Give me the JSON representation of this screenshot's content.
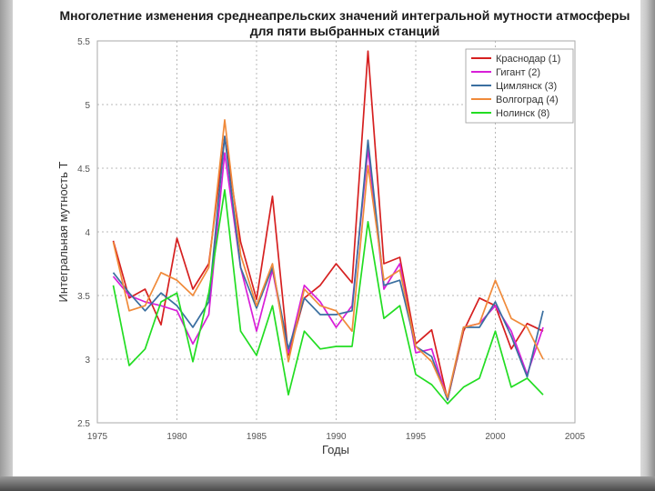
{
  "slide": {
    "title_line1": "Многолетние изменения среднеапрельских значений интегральной мутности атмосферы",
    "title_line2": "для пяти выбранных станций"
  },
  "chart_data": {
    "type": "line",
    "title": "Многолетние изменения среднеапрельских значений интегральной мутности атмосферы для пяти выбранных станций",
    "xlabel": "Годы",
    "ylabel": "Интегральная мутность Т",
    "xlim": [
      1975,
      2005
    ],
    "ylim": [
      2.5,
      5.5
    ],
    "x_ticks": [
      "1975",
      "1980",
      "1985",
      "1990",
      "1995",
      "2000",
      "2005"
    ],
    "y_ticks": [
      "2.5",
      "3",
      "3.5",
      "4",
      "4.5",
      "5",
      "5.5"
    ],
    "grid": true,
    "legend_position": "top-right",
    "x": [
      1976,
      1977,
      1978,
      1979,
      1980,
      1981,
      1982,
      1983,
      1984,
      1985,
      1986,
      1987,
      1988,
      1989,
      1990,
      1991,
      1992,
      1993,
      1994,
      1995,
      1996,
      1997,
      1998,
      1999,
      2000,
      2001,
      2002,
      2003
    ],
    "series": [
      {
        "name": "Краснодар (1)",
        "color": "#d62020",
        "values": [
          3.93,
          3.48,
          3.55,
          3.27,
          3.95,
          3.55,
          3.75,
          4.75,
          3.92,
          3.47,
          4.28,
          3.03,
          3.48,
          3.58,
          3.75,
          3.6,
          5.42,
          3.75,
          3.8,
          3.12,
          3.23,
          2.68,
          3.22,
          3.48,
          3.42,
          3.08,
          3.28,
          3.22
        ]
      },
      {
        "name": "Гигант (2)",
        "color": "#d81fd8",
        "values": [
          3.65,
          3.5,
          3.45,
          3.42,
          3.38,
          3.12,
          3.35,
          4.62,
          3.72,
          3.22,
          3.7,
          3.05,
          3.58,
          3.45,
          3.25,
          3.42,
          4.65,
          3.55,
          3.75,
          3.05,
          3.08,
          2.68,
          3.25,
          3.28,
          3.42,
          3.22,
          2.88,
          3.25
        ]
      },
      {
        "name": "Цимлянск (3)",
        "color": "#3a6fa0",
        "values": [
          3.68,
          3.52,
          3.38,
          3.52,
          3.42,
          3.25,
          3.45,
          4.75,
          3.72,
          3.4,
          3.72,
          3.08,
          3.48,
          3.35,
          3.35,
          3.38,
          4.72,
          3.58,
          3.62,
          3.1,
          3.02,
          2.68,
          3.25,
          3.25,
          3.45,
          3.18,
          2.86,
          3.38
        ]
      },
      {
        "name": "Волгоград (4)",
        "color": "#f08a3a",
        "values": [
          3.92,
          3.38,
          3.42,
          3.68,
          3.62,
          3.5,
          3.72,
          4.88,
          3.82,
          3.42,
          3.75,
          2.98,
          3.55,
          3.42,
          3.38,
          3.22,
          4.52,
          3.62,
          3.7,
          3.1,
          2.98,
          2.7,
          3.25,
          3.28,
          3.62,
          3.32,
          3.25,
          3.0
        ]
      },
      {
        "name": "Нолинск (8)",
        "color": "#22dd22",
        "values": [
          3.58,
          2.95,
          3.08,
          3.45,
          3.52,
          2.98,
          3.52,
          4.33,
          3.22,
          3.03,
          3.42,
          2.72,
          3.22,
          3.08,
          3.1,
          3.1,
          4.08,
          3.32,
          3.42,
          2.88,
          2.8,
          2.65,
          2.78,
          2.85,
          3.22,
          2.78,
          2.85,
          2.72
        ]
      }
    ]
  }
}
